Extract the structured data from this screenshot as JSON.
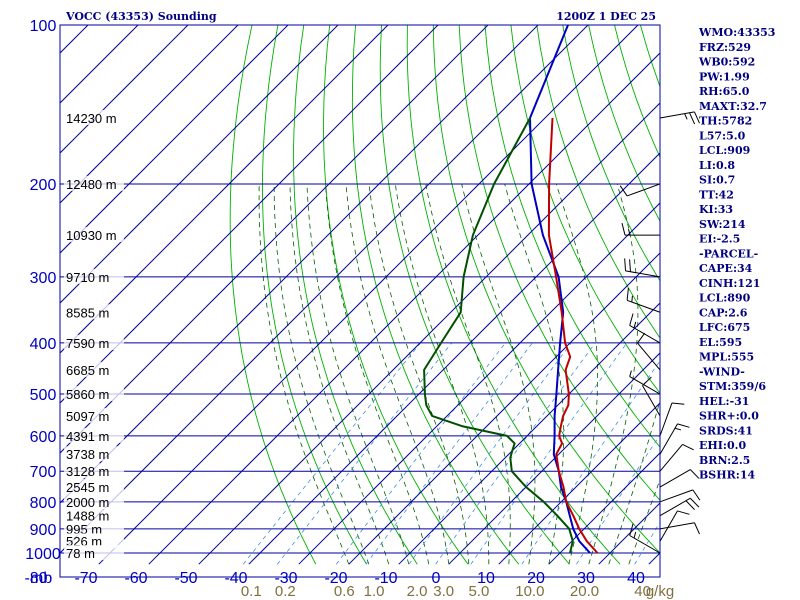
{
  "header": {
    "station": "VOCC (43353) Sounding",
    "time": "1200Z  1 DEC 25"
  },
  "indices": [
    "WMO:43353",
    "FRZ:529",
    "WB0:592",
    "PW:1.99",
    "RH:65.0",
    "MAXT:32.7",
    "TH:5782",
    "L57:5.0",
    "LCL:909",
    "LI:0.8",
    "SI:0.7",
    "TT:42",
    "KI:33",
    "SW:214",
    "EI:-2.5",
    "-PARCEL-",
    "CAPE:34",
    "CINH:121",
    "LCL:890",
    "CAP:2.6",
    "LFC:675",
    "EL:595",
    "MPL:555",
    "-WIND-",
    "STM:359/6",
    "HEL:-31",
    "SHR+:0.0",
    "SRDS:41",
    "EHI:0.0",
    "BRN:2.5",
    "BSHR:14"
  ],
  "colors": {
    "grid": "#0000a0",
    "dry_adiabat": "#00b000",
    "moist_adiabat": "#006000",
    "mixing_ratio": "#4090e0",
    "temperature": "#c00000",
    "dewpoint": "#005000",
    "parcel": "#0000c0",
    "wind_barb": "#000000"
  },
  "chart_data": {
    "type": "skew-t",
    "x_unit_label": "mb",
    "mixing_ratio_unit": "g/kg",
    "pressure_ticks": [
      100,
      200,
      300,
      400,
      500,
      600,
      700,
      800,
      900,
      1000
    ],
    "temperature_ticks": [
      -80,
      -70,
      -60,
      -50,
      -40,
      -30,
      -20,
      -10,
      0,
      10,
      20,
      30,
      40
    ],
    "xlim": [
      -80,
      40
    ],
    "plim": [
      1050,
      100
    ],
    "height_labels": [
      {
        "p": 150,
        "label": "14230 m"
      },
      {
        "p": 200,
        "label": "12480 m"
      },
      {
        "p": 250,
        "label": "10930 m"
      },
      {
        "p": 300,
        "label": "9710 m"
      },
      {
        "p": 350,
        "label": "8585 m"
      },
      {
        "p": 400,
        "label": "7590 m"
      },
      {
        "p": 450,
        "label": "6685 m"
      },
      {
        "p": 500,
        "label": "5860 m"
      },
      {
        "p": 550,
        "label": "5097 m"
      },
      {
        "p": 600,
        "label": "4391 m"
      },
      {
        "p": 650,
        "label": "3738 m"
      },
      {
        "p": 700,
        "label": "3128 m"
      },
      {
        "p": 750,
        "label": "2545 m"
      },
      {
        "p": 800,
        "label": "2000 m"
      },
      {
        "p": 850,
        "label": "1488 m"
      },
      {
        "p": 900,
        "label": "995 m"
      },
      {
        "p": 950,
        "label": "526 m"
      },
      {
        "p": 1000,
        "label": "78 m"
      }
    ],
    "mixing_ratio_lines": [
      {
        "w": 0.1,
        "label": "0.1"
      },
      {
        "w": 0.2,
        "label": "0.2"
      },
      {
        "w": 0.6,
        "label": "0.6"
      },
      {
        "w": 1.0,
        "label": "1.0"
      },
      {
        "w": 2.0,
        "label": "2.0"
      },
      {
        "w": 3.0,
        "label": "3.0"
      },
      {
        "w": 5.0,
        "label": "5.0"
      },
      {
        "w": 10.0,
        "label": "10.0"
      },
      {
        "w": 20.0,
        "label": "20.0"
      },
      {
        "w": 40.0,
        "label": "40"
      }
    ],
    "temperature": [
      [
        1000,
        27.5
      ],
      [
        950,
        23.0
      ],
      [
        900,
        19.0
      ],
      [
        850,
        15.2
      ],
      [
        800,
        11.0
      ],
      [
        750,
        7.5
      ],
      [
        700,
        3.4
      ],
      [
        650,
        -0.5
      ],
      [
        620,
        -1.5
      ],
      [
        600,
        -3.6
      ],
      [
        575,
        -5.2
      ],
      [
        550,
        -6.8
      ],
      [
        525,
        -7.9
      ],
      [
        500,
        -10.0
      ],
      [
        450,
        -15.5
      ],
      [
        425,
        -17.2
      ],
      [
        400,
        -21.0
      ],
      [
        350,
        -27.8
      ],
      [
        300,
        -36.0
      ],
      [
        250,
        -45.8
      ],
      [
        200,
        -56.0
      ],
      [
        150,
        -68.5
      ]
    ],
    "dewpoint": [
      [
        1000,
        22.0
      ],
      [
        950,
        20.2
      ],
      [
        900,
        17.0
      ],
      [
        850,
        12.0
      ],
      [
        800,
        6.5
      ],
      [
        750,
        0.0
      ],
      [
        700,
        -6.0
      ],
      [
        660,
        -9.0
      ],
      [
        640,
        -10.0
      ],
      [
        620,
        -11.0
      ],
      [
        600,
        -14.0
      ],
      [
        575,
        -25.0
      ],
      [
        550,
        -33.0
      ],
      [
        525,
        -36.3
      ],
      [
        500,
        -38.8
      ],
      [
        450,
        -43.8
      ],
      [
        400,
        -45.8
      ],
      [
        350,
        -48.0
      ],
      [
        300,
        -54.5
      ],
      [
        250,
        -61.0
      ],
      [
        200,
        -67.0
      ],
      [
        150,
        -73.0
      ]
    ],
    "parcel": [
      [
        1000,
        26.0
      ],
      [
        950,
        21.5
      ],
      [
        900,
        17.8
      ],
      [
        850,
        14.5
      ],
      [
        800,
        11.0
      ],
      [
        750,
        7.0
      ],
      [
        700,
        3.4
      ],
      [
        650,
        -1.0
      ],
      [
        600,
        -4.5
      ],
      [
        550,
        -8.5
      ],
      [
        500,
        -12.5
      ],
      [
        450,
        -17.0
      ],
      [
        400,
        -22.0
      ],
      [
        350,
        -27.5
      ],
      [
        300,
        -35.5
      ],
      [
        250,
        -47.0
      ],
      [
        200,
        -59.5
      ],
      [
        150,
        -73.0
      ],
      [
        100,
        -84.0
      ]
    ],
    "wind": [
      {
        "p": 1000,
        "dir": 300,
        "spd": 15
      },
      {
        "p": 950,
        "dir": 30,
        "spd": 10
      },
      {
        "p": 900,
        "dir": 80,
        "spd": 10
      },
      {
        "p": 850,
        "dir": 60,
        "spd": 20
      },
      {
        "p": 800,
        "dir": 70,
        "spd": 10
      },
      {
        "p": 750,
        "dir": 60,
        "spd": 10
      },
      {
        "p": 700,
        "dir": 40,
        "spd": 10
      },
      {
        "p": 650,
        "dir": 30,
        "spd": 15
      },
      {
        "p": 600,
        "dir": 20,
        "spd": 10
      },
      {
        "p": 550,
        "dir": 330,
        "spd": 10
      },
      {
        "p": 500,
        "dir": 300,
        "spd": 5
      },
      {
        "p": 450,
        "dir": 320,
        "spd": 10
      },
      {
        "p": 400,
        "dir": 300,
        "spd": 15
      },
      {
        "p": 350,
        "dir": 290,
        "spd": 15
      },
      {
        "p": 300,
        "dir": 280,
        "spd": 20
      },
      {
        "p": 250,
        "dir": 270,
        "spd": 15
      },
      {
        "p": 200,
        "dir": 250,
        "spd": 10
      },
      {
        "p": 150,
        "dir": 80,
        "spd": 25
      }
    ]
  }
}
